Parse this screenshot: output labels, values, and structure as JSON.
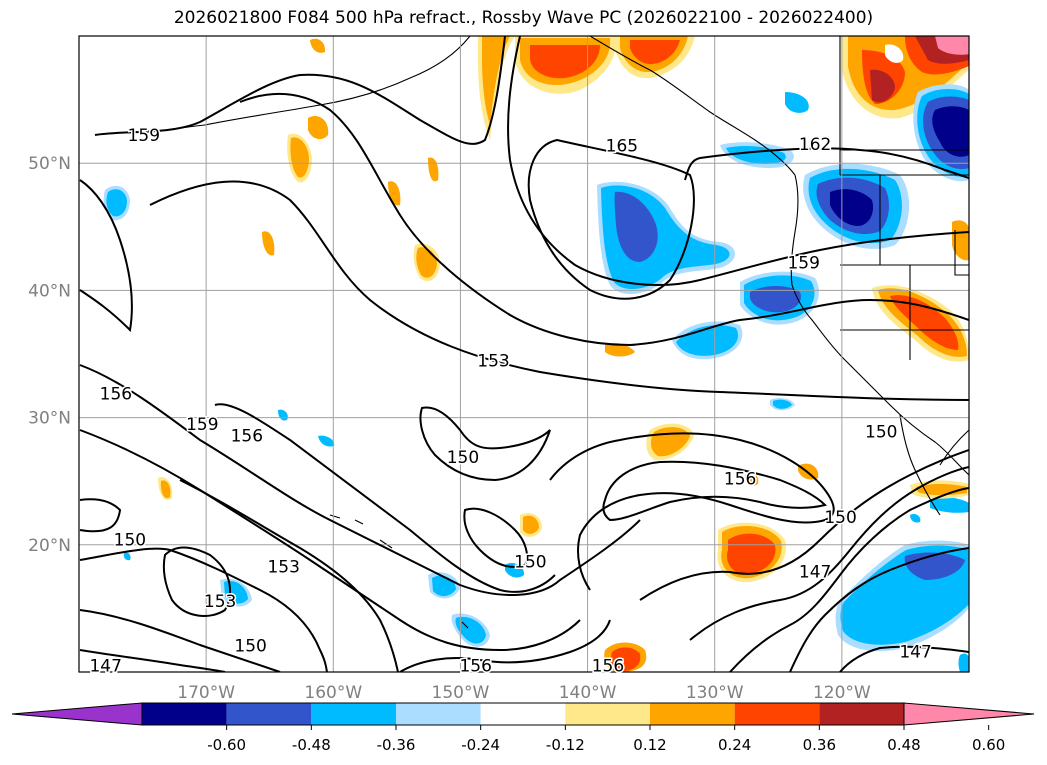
{
  "title": "2026021800 F084 500 hPa refract., Rossby Wave PC (2026022100 - 2026022400)",
  "map": {
    "lon_range": [
      -180,
      -110
    ],
    "lat_range": [
      10,
      60
    ],
    "lon_ticks": [
      {
        "value": -170,
        "label": "170°W"
      },
      {
        "value": -160,
        "label": "160°W"
      },
      {
        "value": -150,
        "label": "150°W"
      },
      {
        "value": -140,
        "label": "140°W"
      },
      {
        "value": -130,
        "label": "130°W"
      },
      {
        "value": -120,
        "label": "120°W"
      }
    ],
    "lat_ticks": [
      {
        "value": 20,
        "label": "20°N"
      },
      {
        "value": 30,
        "label": "30°N"
      },
      {
        "value": 40,
        "label": "40°N"
      },
      {
        "value": 50,
        "label": "50°N"
      }
    ],
    "grid": true,
    "contour_labels": [
      {
        "lon": -174.9,
        "lat": 52.2,
        "text": "159"
      },
      {
        "lon": -137.3,
        "lat": 51.4,
        "text": "165"
      },
      {
        "lon": -122.1,
        "lat": 51.5,
        "text": "162"
      },
      {
        "lon": -123.0,
        "lat": 42.2,
        "text": "159"
      },
      {
        "lon": -147.4,
        "lat": 34.5,
        "text": "153"
      },
      {
        "lon": -177.1,
        "lat": 31.9,
        "text": "156"
      },
      {
        "lon": -170.3,
        "lat": 29.5,
        "text": "159"
      },
      {
        "lon": -166.8,
        "lat": 28.6,
        "text": "156"
      },
      {
        "lon": -149.8,
        "lat": 26.9,
        "text": "150"
      },
      {
        "lon": -116.9,
        "lat": 28.9,
        "text": "150"
      },
      {
        "lon": -128.0,
        "lat": 25.2,
        "text": "156"
      },
      {
        "lon": -120.1,
        "lat": 22.2,
        "text": "150"
      },
      {
        "lon": -176.0,
        "lat": 20.4,
        "text": "150"
      },
      {
        "lon": -144.5,
        "lat": 18.7,
        "text": "150"
      },
      {
        "lon": -163.9,
        "lat": 18.3,
        "text": "153"
      },
      {
        "lon": -122.1,
        "lat": 17.9,
        "text": "147"
      },
      {
        "lon": -168.9,
        "lat": 15.6,
        "text": "153"
      },
      {
        "lon": -166.5,
        "lat": 12.1,
        "text": "150"
      },
      {
        "lon": -177.9,
        "lat": 10.5,
        "text": "147"
      },
      {
        "lon": -148.8,
        "lat": 10.5,
        "text": "156"
      },
      {
        "lon": -138.4,
        "lat": 10.5,
        "text": "156"
      },
      {
        "lon": -114.2,
        "lat": 11.6,
        "text": "147"
      }
    ]
  },
  "colorbar": {
    "ticks": [
      "-0.60",
      "-0.48",
      "-0.36",
      "-0.24",
      "-0.12",
      "0.12",
      "0.24",
      "0.36",
      "0.48",
      "0.60"
    ],
    "colors": [
      "#9933cc",
      "#00008b",
      "#3355cc",
      "#00bbff",
      "#aaddff",
      "#ffffff",
      "#ffe88a",
      "#ffa500",
      "#ff4400",
      "#b22222",
      "#ff88aa"
    ]
  }
}
